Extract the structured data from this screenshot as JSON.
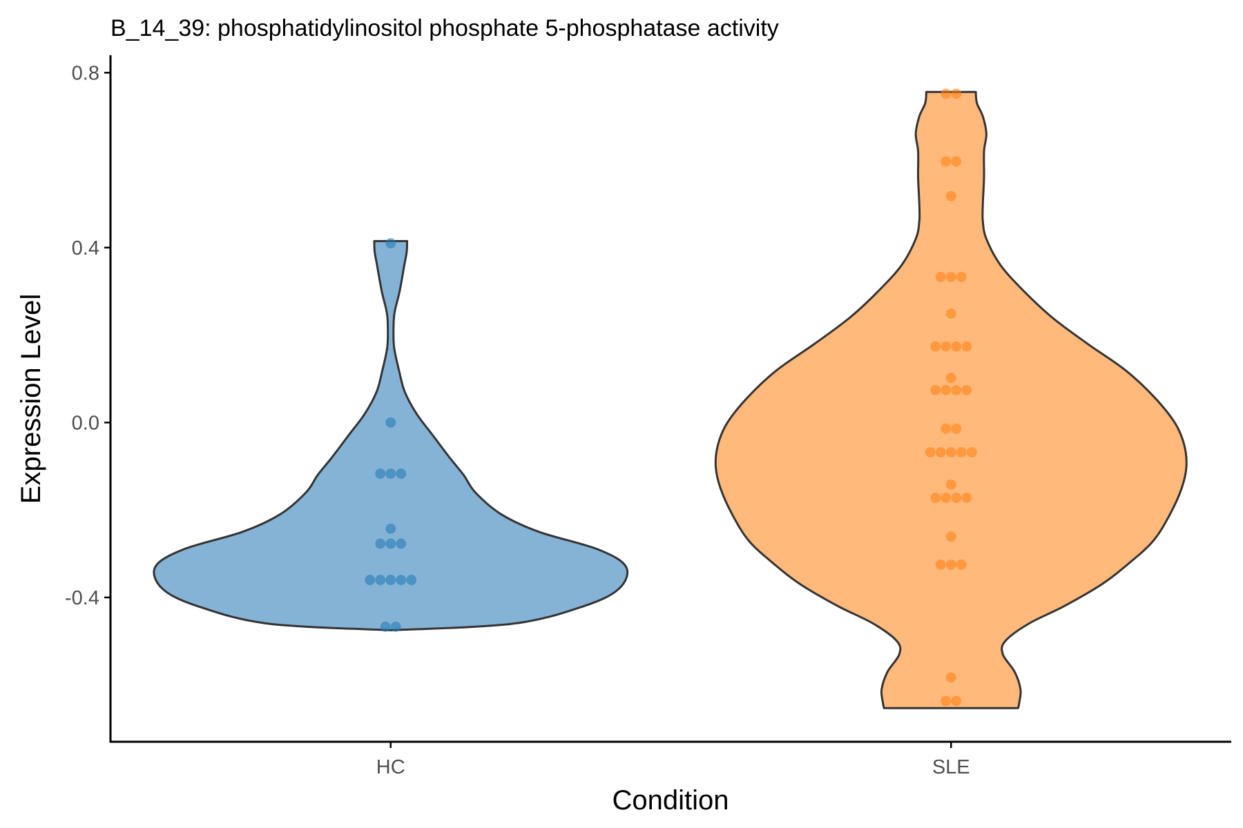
{
  "chart_data": {
    "type": "violin",
    "title": "B_14_39: phosphatidylinositol phosphate 5-phosphatase activity",
    "xlabel": "Condition",
    "ylabel": "Expression Level",
    "categories": [
      "HC",
      "SLE"
    ],
    "ylim": [
      -0.73,
      0.84
    ],
    "yticks": [
      -0.4,
      0.0,
      0.4,
      0.8
    ],
    "ytick_labels": [
      "-0.4",
      "0.0",
      "0.4",
      "0.8"
    ],
    "grid": false,
    "legend": "none",
    "series": [
      {
        "category": "HC",
        "fill_color": "#84b3d6",
        "point_color": "#1f77b4",
        "points": [
          0.41,
          0.0,
          -0.117,
          -0.117,
          -0.117,
          -0.243,
          -0.277,
          -0.277,
          -0.277,
          -0.36,
          -0.36,
          -0.36,
          -0.36,
          -0.36,
          -0.467,
          -0.467
        ],
        "range": [
          -0.475,
          0.415
        ],
        "density": [
          [
            -0.475,
            0.0
          ],
          [
            -0.46,
            0.52
          ],
          [
            -0.42,
            0.82
          ],
          [
            -0.38,
            0.97
          ],
          [
            -0.33,
            1.0
          ],
          [
            -0.29,
            0.88
          ],
          [
            -0.25,
            0.63
          ],
          [
            -0.21,
            0.47
          ],
          [
            -0.16,
            0.36
          ],
          [
            -0.12,
            0.31
          ],
          [
            -0.08,
            0.25
          ],
          [
            -0.03,
            0.18
          ],
          [
            0.02,
            0.11
          ],
          [
            0.07,
            0.06
          ],
          [
            0.12,
            0.035
          ],
          [
            0.17,
            0.015
          ],
          [
            0.21,
            0.012
          ],
          [
            0.25,
            0.016
          ],
          [
            0.3,
            0.038
          ],
          [
            0.36,
            0.058
          ],
          [
            0.39,
            0.068
          ],
          [
            0.415,
            0.07
          ]
        ]
      },
      {
        "category": "SLE",
        "fill_color": "#ffb97a",
        "point_color": "#ff7f0e",
        "points": [
          0.752,
          0.752,
          0.597,
          0.597,
          0.518,
          0.333,
          0.333,
          0.333,
          0.249,
          0.174,
          0.174,
          0.174,
          0.174,
          0.102,
          0.074,
          0.074,
          0.074,
          0.074,
          -0.014,
          -0.014,
          -0.068,
          -0.068,
          -0.068,
          -0.068,
          -0.068,
          -0.142,
          -0.172,
          -0.172,
          -0.172,
          -0.172,
          -0.261,
          -0.325,
          -0.325,
          -0.325,
          -0.583,
          -0.637,
          -0.637
        ],
        "range": [
          -0.653,
          0.756
        ],
        "density": [
          [
            -0.653,
            0.285
          ],
          [
            -0.64,
            0.29
          ],
          [
            -0.61,
            0.295
          ],
          [
            -0.57,
            0.27
          ],
          [
            -0.53,
            0.22
          ],
          [
            -0.5,
            0.23
          ],
          [
            -0.46,
            0.33
          ],
          [
            -0.42,
            0.48
          ],
          [
            -0.37,
            0.64
          ],
          [
            -0.32,
            0.76
          ],
          [
            -0.27,
            0.86
          ],
          [
            -0.21,
            0.93
          ],
          [
            -0.15,
            0.98
          ],
          [
            -0.1,
            1.0
          ],
          [
            -0.05,
            0.99
          ],
          [
            0.0,
            0.95
          ],
          [
            0.06,
            0.86
          ],
          [
            0.12,
            0.74
          ],
          [
            0.18,
            0.58
          ],
          [
            0.24,
            0.43
          ],
          [
            0.3,
            0.31
          ],
          [
            0.36,
            0.21
          ],
          [
            0.42,
            0.15
          ],
          [
            0.46,
            0.135
          ],
          [
            0.5,
            0.135
          ],
          [
            0.56,
            0.14
          ],
          [
            0.62,
            0.14
          ],
          [
            0.66,
            0.15
          ],
          [
            0.7,
            0.135
          ],
          [
            0.73,
            0.11
          ],
          [
            0.756,
            0.105
          ]
        ]
      }
    ]
  }
}
